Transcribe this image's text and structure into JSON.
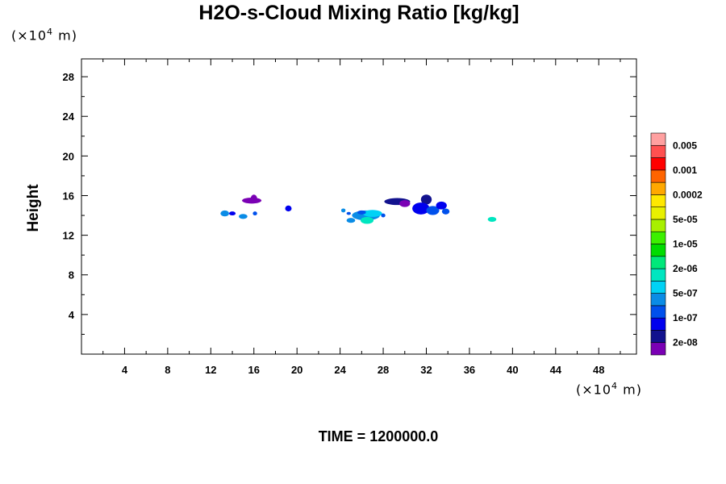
{
  "title": "H2O-s-Cloud Mixing Ratio [kg/kg]",
  "ylabel": "Height",
  "unit_prefix": "(×10",
  "unit_exp": "4",
  "unit_suffix": " m)",
  "time_label": "TIME = 1200000.0",
  "chart_data": {
    "type": "heatmap",
    "title": "H2O-s-Cloud Mixing Ratio [kg/kg]",
    "xlabel": "(×10⁴ m)",
    "ylabel": "Height",
    "xlim": [
      0,
      51.5
    ],
    "ylim": [
      0,
      29.8
    ],
    "xticks": [
      4,
      8,
      12,
      16,
      20,
      24,
      28,
      32,
      36,
      40,
      44,
      48
    ],
    "yticks": [
      4,
      8,
      12,
      16,
      20,
      24,
      28
    ],
    "colorbar": {
      "colors": [
        "#7a00b4",
        "#12128e",
        "#0000ee",
        "#0050ec",
        "#0a8ce6",
        "#00d2f5",
        "#00e6c0",
        "#00e87a",
        "#00dc00",
        "#3cf000",
        "#a8f000",
        "#e8f000",
        "#ffe800",
        "#ffa800",
        "#ff6400",
        "#ff0000",
        "#ff5050",
        "#ffa0a0"
      ],
      "labels": [
        "2e-08",
        "1e-07",
        "5e-07",
        "2e-06",
        "1e-05",
        "5e-05",
        "0.0002",
        "0.001",
        "0.005"
      ]
    },
    "blobs": [
      {
        "x": 15.8,
        "y": 15.5,
        "rx": 0.9,
        "ry": 0.3,
        "color": "#7a00b4"
      },
      {
        "x": 16.0,
        "y": 15.7,
        "rx": 0.3,
        "ry": 0.4,
        "color": "#7a00b4"
      },
      {
        "x": 13.3,
        "y": 14.2,
        "rx": 0.4,
        "ry": 0.3,
        "color": "#0a8ce6"
      },
      {
        "x": 14.0,
        "y": 14.2,
        "rx": 0.3,
        "ry": 0.2,
        "color": "#0000ee"
      },
      {
        "x": 15.0,
        "y": 13.9,
        "rx": 0.4,
        "ry": 0.25,
        "color": "#0a8ce6"
      },
      {
        "x": 16.1,
        "y": 14.2,
        "rx": 0.2,
        "ry": 0.2,
        "color": "#0050ec"
      },
      {
        "x": 19.2,
        "y": 14.7,
        "rx": 0.3,
        "ry": 0.3,
        "color": "#0000ee"
      },
      {
        "x": 24.3,
        "y": 14.5,
        "rx": 0.2,
        "ry": 0.2,
        "color": "#0a8ce6"
      },
      {
        "x": 24.8,
        "y": 14.2,
        "rx": 0.2,
        "ry": 0.15,
        "color": "#0050ec"
      },
      {
        "x": 25.0,
        "y": 13.5,
        "rx": 0.4,
        "ry": 0.25,
        "color": "#0a8ce6"
      },
      {
        "x": 26.4,
        "y": 14.0,
        "rx": 1.3,
        "ry": 0.5,
        "color": "#0a8ce6"
      },
      {
        "x": 26.5,
        "y": 13.5,
        "rx": 0.6,
        "ry": 0.35,
        "color": "#00e6c0"
      },
      {
        "x": 27.0,
        "y": 14.2,
        "rx": 0.9,
        "ry": 0.35,
        "color": "#00d2f5"
      },
      {
        "x": 26.0,
        "y": 14.3,
        "rx": 0.4,
        "ry": 0.2,
        "color": "#0050ec"
      },
      {
        "x": 28.0,
        "y": 14.0,
        "rx": 0.2,
        "ry": 0.2,
        "color": "#0050ec"
      },
      {
        "x": 29.3,
        "y": 15.4,
        "rx": 1.2,
        "ry": 0.35,
        "color": "#12128e"
      },
      {
        "x": 30.0,
        "y": 15.2,
        "rx": 0.5,
        "ry": 0.35,
        "color": "#7a00b4"
      },
      {
        "x": 32.0,
        "y": 15.6,
        "rx": 0.5,
        "ry": 0.5,
        "color": "#12128e"
      },
      {
        "x": 31.5,
        "y": 14.7,
        "rx": 0.8,
        "ry": 0.6,
        "color": "#0000ee"
      },
      {
        "x": 32.6,
        "y": 14.5,
        "rx": 0.6,
        "ry": 0.45,
        "color": "#0050ec"
      },
      {
        "x": 33.4,
        "y": 15.0,
        "rx": 0.5,
        "ry": 0.4,
        "color": "#0000ee"
      },
      {
        "x": 33.8,
        "y": 14.4,
        "rx": 0.35,
        "ry": 0.3,
        "color": "#0050ec"
      },
      {
        "x": 38.1,
        "y": 13.6,
        "rx": 0.4,
        "ry": 0.25,
        "color": "#00e6c0"
      }
    ]
  }
}
